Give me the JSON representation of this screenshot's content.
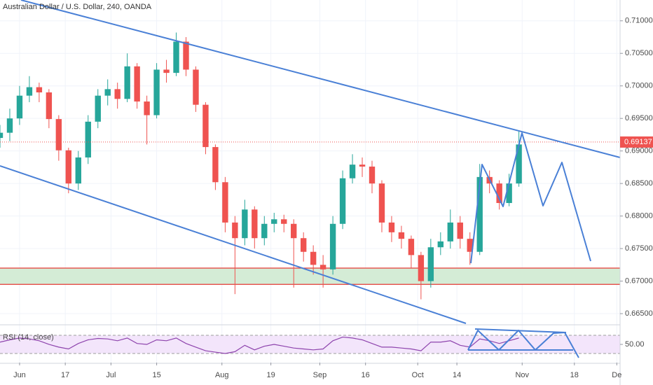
{
  "chart_data": {
    "type": "candlestick",
    "title": "Australian Dollar / U.S. Dollar, 240, OANDA",
    "up_color": "#26a69a",
    "down_color": "#ef5350",
    "xlim": [
      -6,
      184
    ],
    "xticks": [
      {
        "value": 0,
        "label": "Jun"
      },
      {
        "value": 14,
        "label": "17"
      },
      {
        "value": 28,
        "label": "Jul"
      },
      {
        "value": 42,
        "label": "15"
      },
      {
        "value": 62,
        "label": "Aug"
      },
      {
        "value": 77,
        "label": "19"
      },
      {
        "value": 92,
        "label": "Sep"
      },
      {
        "value": 106,
        "label": "16"
      },
      {
        "value": 122,
        "label": "Oct"
      },
      {
        "value": 134,
        "label": "14"
      },
      {
        "value": 154,
        "label": "Nov"
      },
      {
        "value": 170,
        "label": "18"
      },
      {
        "value": 183,
        "label": "De"
      }
    ],
    "ylim": [
      0.6635,
      0.7132
    ],
    "yticks": [
      {
        "value": 0.665,
        "label": "0.66500"
      },
      {
        "value": 0.67,
        "label": "0.67000"
      },
      {
        "value": 0.675,
        "label": "0.67500"
      },
      {
        "value": 0.68,
        "label": "0.68000"
      },
      {
        "value": 0.685,
        "label": "0.68500"
      },
      {
        "value": 0.69,
        "label": "0.69000"
      },
      {
        "value": 0.695,
        "label": "0.69500"
      },
      {
        "value": 0.7,
        "label": "0.70000"
      },
      {
        "value": 0.705,
        "label": "0.70500"
      },
      {
        "value": 0.71,
        "label": "0.71000"
      }
    ],
    "grid": true,
    "last_price": 0.69137,
    "zone": [
      0.6695,
      0.672
    ],
    "x": [
      -6,
      -3,
      0,
      3,
      6,
      9,
      12,
      15,
      18,
      21,
      24,
      27,
      30,
      33,
      36,
      39,
      42,
      45,
      48,
      51,
      54,
      57,
      60,
      63,
      66,
      69,
      72,
      75,
      78,
      81,
      84,
      87,
      90,
      93,
      96,
      99,
      102,
      105,
      108,
      111,
      114,
      117,
      120,
      123,
      126,
      129,
      132,
      135,
      138,
      141,
      144,
      147,
      150,
      153
    ],
    "open": [
      0.692,
      0.6928,
      0.695,
      0.6985,
      0.6998,
      0.699,
      0.6949,
      0.6901,
      0.685,
      0.689,
      0.6945,
      0.6985,
      0.6995,
      0.698,
      0.703,
      0.6976,
      0.6955,
      0.7025,
      0.702,
      0.7068,
      0.7025,
      0.6971,
      0.6906,
      0.6852,
      0.679,
      0.6766,
      0.681,
      0.6766,
      0.6788,
      0.6795,
      0.6788,
      0.6766,
      0.6745,
      0.6725,
      0.6718,
      0.6788,
      0.6858,
      0.6879,
      0.6876,
      0.685,
      0.679,
      0.6775,
      0.6765,
      0.674,
      0.67,
      0.6752,
      0.6761,
      0.679,
      0.6765,
      0.6745,
      0.686,
      0.685,
      0.682,
      0.685
    ],
    "high": [
      0.694,
      0.6965,
      0.7,
      0.7015,
      0.7005,
      0.6995,
      0.6955,
      0.6905,
      0.69,
      0.6955,
      0.6995,
      0.701,
      0.7005,
      0.705,
      0.7035,
      0.6985,
      0.7035,
      0.704,
      0.7082,
      0.7075,
      0.703,
      0.6975,
      0.691,
      0.686,
      0.68,
      0.6825,
      0.6815,
      0.68,
      0.6805,
      0.6802,
      0.6795,
      0.6775,
      0.6755,
      0.674,
      0.68,
      0.687,
      0.6895,
      0.689,
      0.6885,
      0.6855,
      0.68,
      0.6785,
      0.677,
      0.6745,
      0.6765,
      0.6775,
      0.681,
      0.68,
      0.6775,
      0.688,
      0.687,
      0.6855,
      0.6865,
      0.693
    ],
    "low": [
      0.6905,
      0.6915,
      0.694,
      0.6975,
      0.6975,
      0.6935,
      0.6885,
      0.6835,
      0.684,
      0.688,
      0.6935,
      0.697,
      0.6965,
      0.6975,
      0.6965,
      0.691,
      0.695,
      0.7005,
      0.7015,
      0.7015,
      0.696,
      0.6895,
      0.684,
      0.6775,
      0.668,
      0.6755,
      0.675,
      0.6755,
      0.6775,
      0.6775,
      0.669,
      0.673,
      0.671,
      0.669,
      0.671,
      0.678,
      0.685,
      0.686,
      0.6835,
      0.6775,
      0.676,
      0.675,
      0.672,
      0.6672,
      0.669,
      0.674,
      0.675,
      0.675,
      0.6725,
      0.674,
      0.6835,
      0.681,
      0.6815,
      0.6845
    ],
    "close": [
      0.6928,
      0.695,
      0.6985,
      0.6998,
      0.699,
      0.6949,
      0.6901,
      0.685,
      0.689,
      0.6945,
      0.6985,
      0.6995,
      0.698,
      0.703,
      0.6976,
      0.6955,
      0.7025,
      0.702,
      0.7068,
      0.7025,
      0.6971,
      0.6906,
      0.6852,
      0.679,
      0.6766,
      0.681,
      0.6766,
      0.6788,
      0.6795,
      0.6788,
      0.6766,
      0.6745,
      0.6725,
      0.6718,
      0.6788,
      0.6858,
      0.6879,
      0.6876,
      0.685,
      0.679,
      0.6775,
      0.6765,
      0.674,
      0.67,
      0.6752,
      0.6761,
      0.679,
      0.6765,
      0.6745,
      0.686,
      0.685,
      0.682,
      0.685,
      0.691
    ],
    "rsi": {
      "label": "RSI (14, close)",
      "color": "#8e44ad",
      "ylim": [
        10,
        91.5
      ],
      "yticks": [
        {
          "value": 50,
          "label": "50.00"
        }
      ],
      "bands": [
        30,
        70
      ],
      "values": [
        55,
        60,
        64,
        62,
        58,
        50,
        44,
        40,
        52,
        60,
        63,
        62,
        58,
        64,
        52,
        50,
        60,
        58,
        64,
        52,
        44,
        36,
        33,
        30,
        34,
        48,
        38,
        46,
        50,
        46,
        42,
        40,
        38,
        40,
        58,
        66,
        64,
        60,
        52,
        44,
        44,
        42,
        40,
        36,
        55,
        55,
        58,
        48,
        44,
        62,
        58,
        52,
        58,
        64
      ]
    }
  }
}
